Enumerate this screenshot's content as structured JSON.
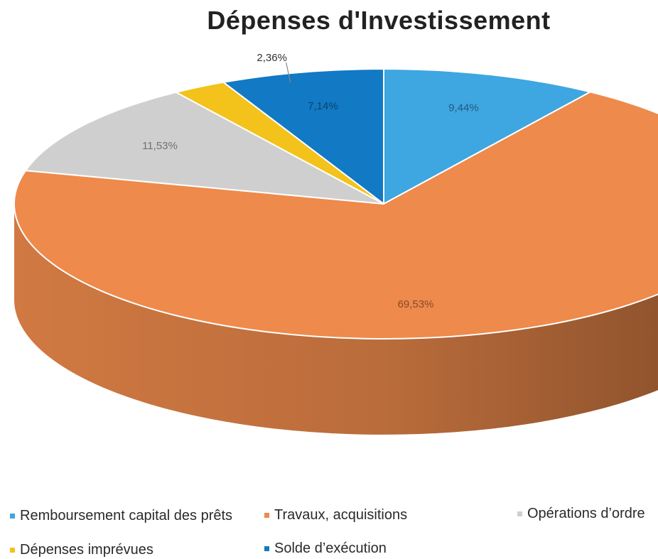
{
  "chart_data": {
    "type": "pie",
    "title": "Dépenses d'Investissement",
    "slices": [
      {
        "name": "Remboursement capital des prêts",
        "value": 9.44,
        "label": "9,44%",
        "color": "#3ea6e0"
      },
      {
        "name": "Travaux, acquisitions",
        "value": 69.53,
        "label": "69,53%",
        "color": "#ee8a4b"
      },
      {
        "name": "Opérations d’ordre",
        "value": 11.53,
        "label": "11,53%",
        "color": "#cfcfcf"
      },
      {
        "name": "Dépenses imprévues",
        "value": 2.36,
        "label": "2,36%",
        "color": "#f3c21b"
      },
      {
        "name": "Solde d’exécution",
        "value": 7.14,
        "label": "7,14%",
        "color": "#1279c4"
      }
    ],
    "style": "3d-pie",
    "legend_position": "bottom"
  }
}
